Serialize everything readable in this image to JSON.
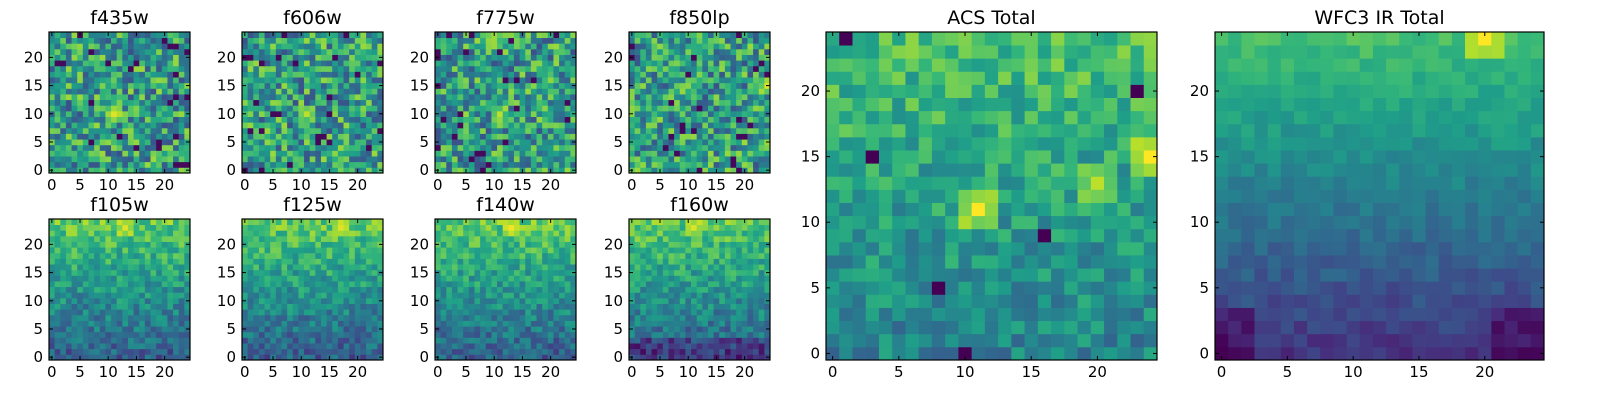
{
  "figure": {
    "description_title": "",
    "colormap": "viridis"
  },
  "chart_data": [
    {
      "type": "heatmap",
      "title": "f435w",
      "xlim": [
        0,
        24
      ],
      "ylim": [
        0,
        24
      ],
      "xticks": [
        0,
        5,
        10,
        15,
        20
      ],
      "yticks": [
        0,
        5,
        10,
        15,
        20
      ],
      "grid_size": 25,
      "value_range": [
        0,
        1
      ],
      "hotspots": [
        {
          "x": 11,
          "y": 10,
          "value": 0.95
        }
      ]
    },
    {
      "type": "heatmap",
      "title": "f606w",
      "xlim": [
        0,
        24
      ],
      "ylim": [
        0,
        24
      ],
      "xticks": [
        0,
        5,
        10,
        15,
        20
      ],
      "yticks": [
        0,
        5,
        10,
        15,
        20
      ],
      "grid_size": 25,
      "value_range": [
        0,
        1
      ],
      "hotspots": [
        {
          "x": 11,
          "y": 10,
          "value": 0.9
        }
      ]
    },
    {
      "type": "heatmap",
      "title": "f775w",
      "xlim": [
        0,
        24
      ],
      "ylim": [
        0,
        24
      ],
      "xticks": [
        0,
        5,
        10,
        15,
        20
      ],
      "yticks": [
        0,
        5,
        10,
        15,
        20
      ],
      "grid_size": 25,
      "value_range": [
        0,
        1
      ],
      "hotspots": [
        {
          "x": 11,
          "y": 10,
          "value": 0.9
        },
        {
          "x": 10,
          "y": 23,
          "value": 0.85
        }
      ]
    },
    {
      "type": "heatmap",
      "title": "f850lp",
      "xlim": [
        0,
        24
      ],
      "ylim": [
        0,
        24
      ],
      "xticks": [
        0,
        5,
        10,
        15,
        20
      ],
      "yticks": [
        0,
        5,
        10,
        15,
        20
      ],
      "grid_size": 25,
      "value_range": [
        0,
        1
      ],
      "hotspots": [
        {
          "x": 24,
          "y": 15,
          "value": 0.95
        }
      ]
    },
    {
      "type": "heatmap",
      "title": "f105w",
      "xlim": [
        0,
        24
      ],
      "ylim": [
        0,
        24
      ],
      "xticks": [
        0,
        5,
        10,
        15,
        20
      ],
      "yticks": [
        0,
        5,
        10,
        15,
        20
      ],
      "grid_size": 25,
      "value_range": [
        0,
        1
      ],
      "trend": "brighter toward top",
      "hotspots": [
        {
          "x": 13,
          "y": 23,
          "value": 0.95
        }
      ]
    },
    {
      "type": "heatmap",
      "title": "f125w",
      "xlim": [
        0,
        24
      ],
      "ylim": [
        0,
        24
      ],
      "xticks": [
        0,
        5,
        10,
        15,
        20
      ],
      "yticks": [
        0,
        5,
        10,
        15,
        20
      ],
      "grid_size": 25,
      "value_range": [
        0,
        1
      ],
      "trend": "brighter toward top",
      "hotspots": [
        {
          "x": 17,
          "y": 23,
          "value": 0.95
        }
      ]
    },
    {
      "type": "heatmap",
      "title": "f140w",
      "xlim": [
        0,
        24
      ],
      "ylim": [
        0,
        24
      ],
      "xticks": [
        0,
        5,
        10,
        15,
        20
      ],
      "yticks": [
        0,
        5,
        10,
        15,
        20
      ],
      "grid_size": 25,
      "value_range": [
        0,
        1
      ],
      "trend": "brighter toward top",
      "hotspots": [
        {
          "x": 13,
          "y": 23,
          "value": 0.98
        }
      ]
    },
    {
      "type": "heatmap",
      "title": "f160w",
      "xlim": [
        0,
        24
      ],
      "ylim": [
        0,
        24
      ],
      "xticks": [
        0,
        5,
        10,
        15,
        20
      ],
      "yticks": [
        0,
        5,
        10,
        15,
        20
      ],
      "grid_size": 25,
      "value_range": [
        0,
        1
      ],
      "trend": "brighter toward top, dark at bottom",
      "hotspots": [
        {
          "x": 11,
          "y": 23,
          "value": 0.95
        }
      ]
    },
    {
      "type": "heatmap",
      "title": "ACS Total",
      "xlim": [
        0,
        24
      ],
      "ylim": [
        0,
        24
      ],
      "xticks": [
        0,
        5,
        10,
        15,
        20
      ],
      "yticks": [
        0,
        5,
        10,
        15,
        20
      ],
      "grid_size": 25,
      "value_range": [
        0,
        1
      ],
      "hotspots": [
        {
          "x": 11,
          "y": 11,
          "value": 1.0
        },
        {
          "x": 24,
          "y": 15,
          "value": 1.0
        },
        {
          "x": 20,
          "y": 13,
          "value": 0.9
        }
      ],
      "dark_pixels": [
        {
          "x": 1,
          "y": 24
        },
        {
          "x": 3,
          "y": 15
        },
        {
          "x": 8,
          "y": 5
        },
        {
          "x": 16,
          "y": 9
        },
        {
          "x": 10,
          "y": 0
        },
        {
          "x": 23,
          "y": 20
        }
      ]
    },
    {
      "type": "heatmap",
      "title": "WFC3 IR Total",
      "xlim": [
        0,
        24
      ],
      "ylim": [
        0,
        24
      ],
      "xticks": [
        0,
        5,
        10,
        15,
        20
      ],
      "yticks": [
        0,
        5,
        10,
        15,
        20
      ],
      "grid_size": 25,
      "value_range": [
        0,
        1
      ],
      "trend": "bright band at top, dark at bottom corners",
      "hotspots": [
        {
          "x": 20,
          "y": 24,
          "value": 1.0
        }
      ]
    }
  ]
}
